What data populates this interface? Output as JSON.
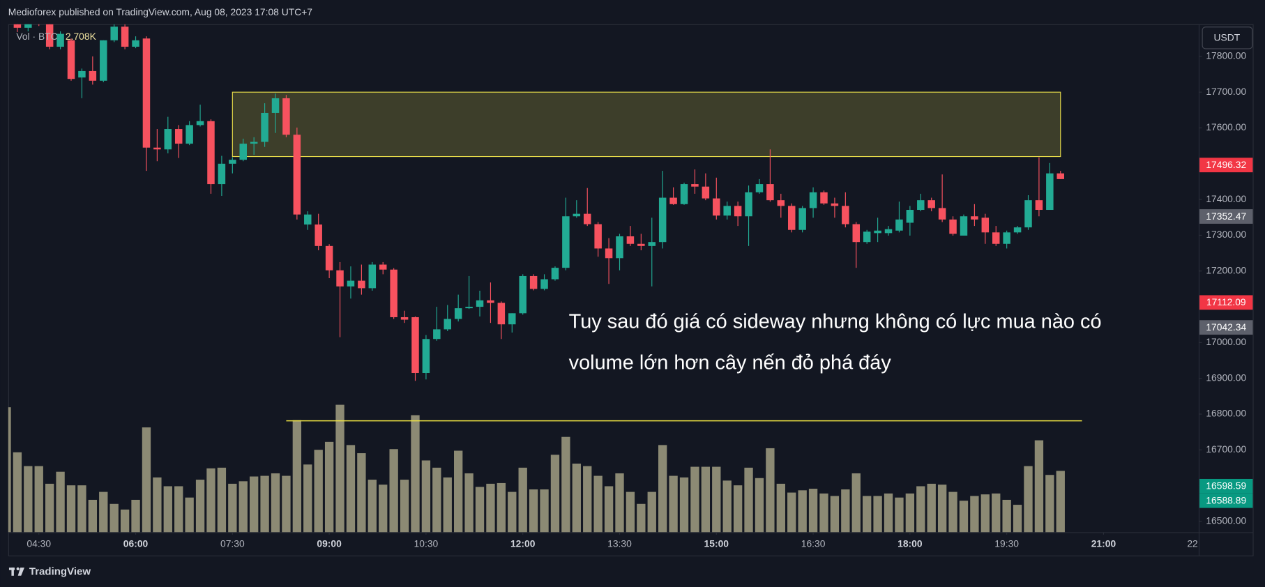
{
  "header": {
    "title": "Medioforex published on TradingView.com, Aug 08, 2023 17:08 UTC+7"
  },
  "chart_data": {
    "type": "candlestick",
    "currency": "USDT",
    "x": [
      "04:00",
      "04:10",
      "04:20",
      "04:30",
      "04:40",
      "04:50",
      "05:00",
      "05:10",
      "05:20",
      "05:30",
      "05:40",
      "05:50",
      "06:00",
      "06:10",
      "06:20",
      "06:30",
      "06:40",
      "06:50",
      "07:00",
      "07:10",
      "07:20",
      "07:30",
      "07:40",
      "07:50",
      "08:00",
      "08:10",
      "08:20",
      "08:30",
      "08:40",
      "08:50",
      "09:00",
      "09:10",
      "09:20",
      "09:30",
      "09:40",
      "09:50",
      "10:00",
      "10:10",
      "10:20",
      "10:30",
      "10:40",
      "10:50",
      "11:00",
      "11:10",
      "11:20",
      "11:30",
      "11:40",
      "11:50",
      "12:00",
      "12:10",
      "12:20",
      "12:30",
      "12:40",
      "12:50",
      "13:00",
      "13:10",
      "13:20",
      "13:30",
      "13:40",
      "13:50",
      "14:00",
      "14:10",
      "14:20",
      "14:30",
      "14:40",
      "14:50",
      "15:00",
      "15:10",
      "15:20",
      "15:30",
      "15:40",
      "15:50",
      "16:00",
      "16:10",
      "16:20",
      "16:30",
      "16:40",
      "16:50",
      "17:00",
      "17:10",
      "17:20",
      "17:30",
      "17:40",
      "17:50",
      "18:00",
      "18:10",
      "18:20",
      "18:30",
      "18:40",
      "18:50",
      "19:00",
      "19:10",
      "19:20",
      "19:30",
      "19:40",
      "19:50",
      "20:00",
      "20:10",
      "20:20"
    ],
    "open": [
      17905,
      17890,
      17880,
      17900,
      17890,
      17827,
      17845,
      17741,
      17759,
      17732,
      17845,
      17883,
      17827,
      17850,
      17545,
      17540,
      17597,
      17556,
      17608,
      17619,
      17443,
      17500,
      17511,
      17556,
      17561,
      17642,
      17683,
      17581,
      17330,
      17330,
      17270,
      17202,
      17157,
      17173,
      17152,
      17218,
      17204,
      17071,
      17071,
      16915,
      17010,
      17037,
      17066,
      17096,
      17100,
      17118,
      17111,
      17051,
      17082,
      17186,
      17150,
      17177,
      17209,
      17353,
      17360,
      17331,
      17263,
      17236,
      17297,
      17276,
      17270,
      17281,
      17405,
      17387,
      17443,
      17436,
      17403,
      17355,
      17382,
      17353,
      17420,
      17443,
      17398,
      17382,
      17315,
      17376,
      17420,
      17389,
      17382,
      17331,
      17281,
      17306,
      17306,
      17313,
      17335,
      17371,
      17398,
      17376,
      17344,
      17299,
      17353,
      17349,
      17308,
      17276,
      17308,
      17322,
      17398,
      17371,
      17473
    ],
    "high": [
      17930,
      17900,
      17910,
      17920,
      17900,
      17870,
      17850,
      17766,
      17800,
      17845,
      17890,
      17890,
      17856,
      17856,
      17597,
      17631,
      17608,
      17619,
      17665,
      17624,
      17522,
      17518,
      17570,
      17574,
      17669,
      17696,
      17692,
      17601,
      17367,
      17360,
      17275,
      17225,
      17213,
      17218,
      17225,
      17225,
      17208,
      17089,
      17073,
      17021,
      17100,
      17105,
      17134,
      17186,
      17145,
      17168,
      17115,
      17082,
      17191,
      17191,
      17191,
      17213,
      17405,
      17398,
      17432,
      17337,
      17292,
      17304,
      17326,
      17304,
      17349,
      17480,
      17434,
      17447,
      17484,
      17473,
      17461,
      17394,
      17394,
      17439,
      17457,
      17540,
      17416,
      17389,
      17382,
      17434,
      17425,
      17405,
      17420,
      17337,
      17315,
      17349,
      17326,
      17394,
      17382,
      17416,
      17405,
      17470,
      17353,
      17358,
      17387,
      17360,
      17326,
      17313,
      17326,
      17412,
      17518,
      17502,
      17480
    ],
    "low": [
      17880,
      17868,
      17870,
      17885,
      17820,
      17820,
      17732,
      17683,
      17721,
      17728,
      17840,
      17820,
      17823,
      17480,
      17507,
      17529,
      17516,
      17552,
      17604,
      17416,
      17410,
      17473,
      17507,
      17525,
      17547,
      17586,
      17574,
      17344,
      17315,
      17258,
      17180,
      17015,
      17123,
      17134,
      17145,
      17191,
      17066,
      17055,
      16893,
      16897,
      17005,
      17032,
      17059,
      17094,
      17073,
      17055,
      17010,
      17028,
      17078,
      17146,
      17146,
      17173,
      17202,
      17349,
      17326,
      17240,
      17164,
      17202,
      17270,
      17258,
      17157,
      17263,
      17385,
      17385,
      17416,
      17398,
      17344,
      17344,
      17326,
      17270,
      17416,
      17394,
      17349,
      17308,
      17308,
      17349,
      17385,
      17349,
      17322,
      17209,
      17276,
      17281,
      17299,
      17308,
      17299,
      17367,
      17367,
      17337,
      17299,
      17299,
      17326,
      17276,
      17270,
      17263,
      17304,
      17315,
      17353,
      17371,
      17457
    ],
    "close": [
      17890,
      17880,
      17900,
      17890,
      17827,
      17863,
      17737,
      17759,
      17732,
      17845,
      17883,
      17827,
      17845,
      17545,
      17540,
      17597,
      17556,
      17608,
      17619,
      17443,
      17500,
      17511,
      17556,
      17561,
      17642,
      17683,
      17581,
      17358,
      17358,
      17270,
      17202,
      17157,
      17173,
      17152,
      17218,
      17204,
      17071,
      17064,
      16915,
      17010,
      17037,
      17066,
      17096,
      17100,
      17118,
      17111,
      17051,
      17082,
      17186,
      17150,
      17177,
      17209,
      17353,
      17360,
      17331,
      17263,
      17236,
      17297,
      17276,
      17270,
      17281,
      17405,
      17387,
      17443,
      17436,
      17403,
      17355,
      17382,
      17353,
      17420,
      17443,
      17398,
      17382,
      17315,
      17376,
      17420,
      17389,
      17382,
      17331,
      17281,
      17310,
      17313,
      17317,
      17344,
      17371,
      17398,
      17376,
      17344,
      17304,
      17353,
      17344,
      17308,
      17276,
      17308,
      17322,
      17398,
      17371,
      17473,
      17457
    ],
    "up_color": "#22ab94",
    "down_color": "#f7525f",
    "volume": {
      "name": "Vol · BTC",
      "value_label": "2.708K",
      "color": "#8c8a74",
      "values": [
        5.52,
        3.53,
        2.92,
        2.92,
        2.14,
        2.67,
        2.07,
        2.07,
        1.43,
        1.78,
        1.25,
        1.0,
        1.43,
        4.63,
        2.42,
        2.03,
        2.03,
        1.53,
        2.32,
        2.82,
        2.85,
        2.14,
        2.25,
        2.46,
        2.49,
        2.6,
        2.49,
        4.95,
        2.99,
        3.64,
        3.99,
        5.63,
        3.85,
        3.49,
        2.32,
        2.1,
        3.67,
        2.32,
        5.17,
        3.17,
        2.85,
        2.42,
        3.6,
        2.6,
        2.0,
        2.14,
        2.17,
        1.78,
        2.85,
        1.89,
        1.89,
        3.42,
        4.21,
        3.03,
        2.92,
        2.49,
        2.03,
        2.6,
        1.78,
        1.25,
        1.78,
        3.85,
        2.49,
        2.42,
        2.89,
        2.89,
        2.89,
        2.28,
        2.07,
        2.85,
        2.39,
        3.71,
        2.14,
        1.75,
        1.85,
        1.92,
        1.71,
        1.6,
        1.89,
        2.6,
        1.6,
        1.6,
        1.71,
        1.53,
        1.71,
        2.03,
        2.14,
        2.1,
        1.78,
        1.39,
        1.6,
        1.67,
        1.71,
        1.43,
        1.21,
        2.92,
        4.06,
        2.53,
        2.708
      ]
    },
    "volume_line": {
      "value": 4.92,
      "from": "08:20",
      "to": "20:40",
      "color": "#f0e442"
    },
    "zone": {
      "low": 17520,
      "high": 17700,
      "from": "07:30",
      "to": "20:20",
      "color": "#e8dc4a"
    },
    "xlim": [
      "04:00",
      "22:30"
    ],
    "ylim": [
      16470,
      17890
    ],
    "yticks": [
      {
        "value": 16500,
        "label": "16500.00"
      },
      {
        "value": 16600,
        "label": "16600.00"
      },
      {
        "value": 16700,
        "label": "16700.00"
      },
      {
        "value": 16800,
        "label": "16800.00"
      },
      {
        "value": 16900,
        "label": "16900.00"
      },
      {
        "value": 17000,
        "label": "17000.00"
      },
      {
        "value": 17100,
        "label": "17100.00"
      },
      {
        "value": 17200,
        "label": "17200.00"
      },
      {
        "value": 17300,
        "label": "17300.00"
      },
      {
        "value": 17400,
        "label": "17400.00"
      },
      {
        "value": 17500,
        "label": "17500.00"
      },
      {
        "value": 17600,
        "label": "17600.00"
      },
      {
        "value": 17700,
        "label": "17700.00"
      },
      {
        "value": 17800,
        "label": "17800.00"
      }
    ],
    "xticks": [
      "04:30",
      "06:00",
      "07:30",
      "09:00",
      "10:30",
      "12:00",
      "13:30",
      "15:00",
      "16:30",
      "18:00",
      "19:30",
      "21:00",
      {
        "value": "22:30",
        "label": "22"
      }
    ],
    "price_labels": [
      {
        "value": 17496.32,
        "color": "#f23645"
      },
      {
        "value": 17352.47,
        "color": "#5d606b"
      },
      {
        "value": 17112.09,
        "color": "#f23645"
      },
      {
        "value": 17042.34,
        "color": "#5d606b"
      },
      {
        "value": 16598.59,
        "color": "#089981"
      },
      {
        "value": 16588.89,
        "color": "#089981"
      }
    ],
    "grid": false,
    "annotations": [
      "Tuy sau đó giá có sideway nhưng không có lực mua nào có",
      "volume lớn hơn cây nến đỏ phá đáy"
    ]
  },
  "footer": {
    "brand": "TradingView"
  }
}
